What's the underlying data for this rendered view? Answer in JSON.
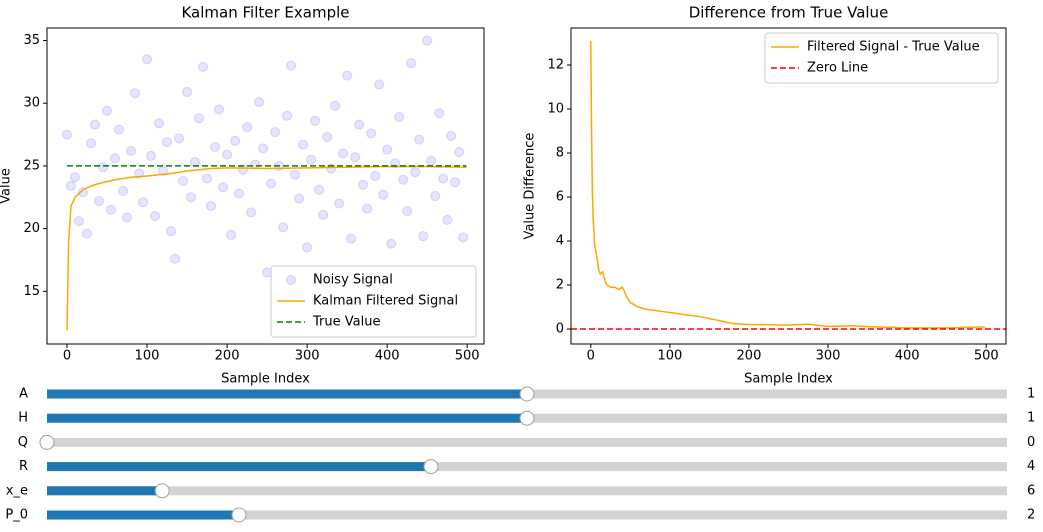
{
  "chart_data": [
    {
      "type": "line",
      "title": "Kalman Filter Example",
      "xlabel": "Sample Index",
      "ylabel": "Value",
      "xlim": [
        -25,
        521
      ],
      "ylim": [
        10.8,
        36.0
      ],
      "xticks": [
        0,
        100,
        200,
        300,
        400,
        500
      ],
      "yticks": [
        15,
        20,
        25,
        30,
        35
      ],
      "legend": "lower right",
      "series": [
        {
          "name": "Noisy Signal",
          "kind": "scatter",
          "color": "#0000ff",
          "x": [
            0,
            5,
            10,
            15,
            20,
            25,
            30,
            35,
            40,
            45,
            50,
            55,
            60,
            65,
            70,
            75,
            80,
            85,
            90,
            95,
            100,
            105,
            110,
            115,
            120,
            125,
            130,
            135,
            140,
            145,
            150,
            155,
            160,
            165,
            170,
            175,
            180,
            185,
            190,
            195,
            200,
            205,
            210,
            215,
            220,
            225,
            230,
            235,
            240,
            245,
            250,
            255,
            260,
            265,
            270,
            275,
            280,
            285,
            290,
            295,
            300,
            305,
            310,
            315,
            320,
            325,
            330,
            335,
            340,
            345,
            350,
            355,
            360,
            365,
            370,
            375,
            380,
            385,
            390,
            395,
            400,
            405,
            410,
            415,
            420,
            425,
            430,
            435,
            440,
            445,
            450,
            455,
            460,
            465,
            470,
            475,
            480,
            485,
            490,
            495
          ],
          "values": [
            27.5,
            23.4,
            24.1,
            20.6,
            22.9,
            19.6,
            26.8,
            28.3,
            22.2,
            24.9,
            29.4,
            21.5,
            25.6,
            27.9,
            23.0,
            20.9,
            26.2,
            30.8,
            24.4,
            22.1,
            33.5,
            25.8,
            21.0,
            28.4,
            24.6,
            26.9,
            19.8,
            17.6,
            27.2,
            23.8,
            30.9,
            22.5,
            25.3,
            28.8,
            32.9,
            24.0,
            21.8,
            26.5,
            29.5,
            23.3,
            25.9,
            19.5,
            27.0,
            22.8,
            24.7,
            28.1,
            21.3,
            25.1,
            30.1,
            26.4,
            16.5,
            23.6,
            27.7,
            25.0,
            20.1,
            29.0,
            33.0,
            24.3,
            22.4,
            26.7,
            18.5,
            25.5,
            28.6,
            23.1,
            21.1,
            27.3,
            24.8,
            29.8,
            22.0,
            26.0,
            32.2,
            19.2,
            25.7,
            28.3,
            23.5,
            21.6,
            27.6,
            24.2,
            31.5,
            22.7,
            26.3,
            18.8,
            25.2,
            28.9,
            23.9,
            21.4,
            33.2,
            24.5,
            27.1,
            19.4,
            35.0,
            25.4,
            22.6,
            29.2,
            24.0,
            20.7,
            27.4,
            23.7,
            26.1,
            19.3
          ]
        },
        {
          "name": "Kalman Filtered Signal",
          "kind": "line",
          "color": "#ffa500",
          "x": [
            0,
            2,
            5,
            10,
            15,
            20,
            30,
            40,
            60,
            80,
            100,
            130,
            150,
            180,
            200,
            250,
            300,
            350,
            400,
            450,
            499
          ],
          "values": [
            11.9,
            19,
            21.8,
            22.5,
            22.8,
            23.1,
            23.4,
            23.6,
            23.9,
            24.1,
            24.2,
            24.4,
            24.6,
            24.8,
            24.85,
            24.8,
            24.85,
            24.9,
            24.95,
            24.95,
            24.9
          ]
        },
        {
          "name": "True Value",
          "kind": "line",
          "dashed": true,
          "color": "#008000",
          "x": [
            0,
            499
          ],
          "values": [
            25,
            25
          ]
        }
      ]
    },
    {
      "type": "line",
      "title": "Difference from True Value",
      "xlabel": "Sample Index",
      "ylabel": "Value Difference",
      "xlim": [
        -25,
        525
      ],
      "ylim": [
        -0.68,
        13.68
      ],
      "xticks": [
        0,
        100,
        200,
        300,
        400,
        500
      ],
      "yticks": [
        0,
        2,
        4,
        6,
        8,
        10,
        12
      ],
      "legend": "upper right",
      "series": [
        {
          "name": "Filtered Signal - True Value",
          "kind": "line",
          "color": "#ffa500",
          "x": [
            0,
            1,
            2,
            3,
            5,
            8,
            10,
            12,
            15,
            18,
            20,
            25,
            30,
            35,
            40,
            45,
            50,
            60,
            70,
            80,
            90,
            100,
            120,
            140,
            160,
            180,
            200,
            220,
            250,
            275,
            300,
            330,
            360,
            400,
            450,
            499
          ],
          "values": [
            13.1,
            9,
            6.2,
            5,
            3.8,
            3.2,
            2.7,
            2.5,
            2.6,
            2.2,
            2.0,
            1.9,
            1.9,
            1.8,
            1.9,
            1.5,
            1.2,
            1.0,
            0.9,
            0.85,
            0.8,
            0.75,
            0.65,
            0.55,
            0.4,
            0.25,
            0.2,
            0.2,
            0.18,
            0.22,
            0.12,
            0.15,
            0.1,
            0.05,
            0.05,
            0.1
          ]
        },
        {
          "name": "Zero Line",
          "kind": "hline",
          "dashed": true,
          "color": "#ff0000",
          "y": 0
        }
      ]
    }
  ],
  "sliders": [
    {
      "label": "A",
      "value": 1,
      "range": [
        0,
        2
      ]
    },
    {
      "label": "H",
      "value": 1,
      "range": [
        0,
        2
      ]
    },
    {
      "label": "Q",
      "value": 0,
      "range": [
        0,
        1
      ]
    },
    {
      "label": "R",
      "value": 4,
      "range": [
        0,
        10
      ]
    },
    {
      "label": "x_e",
      "value": 6,
      "range": [
        0,
        50
      ]
    },
    {
      "label": "P_0",
      "value": 2,
      "range": [
        0,
        10
      ]
    }
  ]
}
